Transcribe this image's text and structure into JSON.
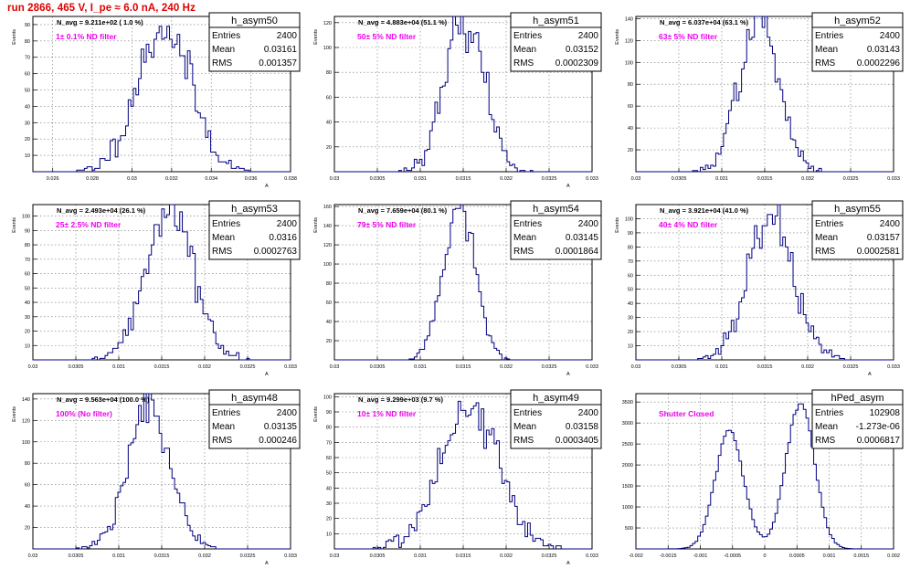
{
  "page_title": "run 2866,   465 V, I_pe ≈ 6.0 nA, 240 Hz",
  "chart_data": [
    {
      "type": "histogram",
      "name": "h_asym50",
      "stats": {
        "entries_label": "Entries",
        "entries": "2400",
        "mean_label": "Mean",
        "mean": "0.03161",
        "rms_label": "RMS",
        "rms": "0.001357"
      },
      "navg": "N_avg = 9.211e+02 ( 1.0 %)",
      "filter": "1± 0.1% ND filter",
      "ylabel": "Events",
      "xlabel": "A",
      "xlim": [
        0.025,
        0.038
      ],
      "ylim": [
        0,
        95
      ],
      "xticks": [
        "0.026",
        "0.028",
        "0.03",
        "0.032",
        "0.034",
        "0.036",
        "0.038"
      ],
      "xtick_values": [
        0.026,
        0.028,
        0.03,
        0.032,
        0.034,
        0.036,
        0.038
      ],
      "yticks": [
        10,
        20,
        30,
        40,
        50,
        60,
        70,
        80,
        90
      ],
      "mu": 0.03161,
      "sigma": 0.001357,
      "peak": 89,
      "nbins": 100,
      "seed": 11
    },
    {
      "type": "histogram",
      "name": "h_asym51",
      "stats": {
        "entries_label": "Entries",
        "entries": "2400",
        "mean_label": "Mean",
        "mean": "0.03152",
        "rms_label": "RMS",
        "rms": "0.0002309"
      },
      "navg": "N_avg = 4.883e+04 (51.1 %)",
      "filter": "50± 5% ND filter",
      "ylabel": "Events",
      "xlabel": "A",
      "xlim": [
        0.03,
        0.033
      ],
      "ylim": [
        0,
        125
      ],
      "xticks": [
        "0.03",
        "0.0305",
        "0.031",
        "0.0315",
        "0.032",
        "0.0325",
        "0.033"
      ],
      "xtick_values": [
        0.03,
        0.0305,
        0.031,
        0.0315,
        0.032,
        0.0325,
        0.033
      ],
      "yticks": [
        20,
        40,
        60,
        80,
        100,
        120
      ],
      "mu": 0.03152,
      "sigma": 0.0002309,
      "peak": 122,
      "nbins": 100,
      "seed": 23
    },
    {
      "type": "histogram",
      "name": "h_asym52",
      "stats": {
        "entries_label": "Entries",
        "entries": "2400",
        "mean_label": "Mean",
        "mean": "0.03143",
        "rms_label": "RMS",
        "rms": "0.0002296"
      },
      "navg": "N_avg = 6.037e+04 (63.1 %)",
      "filter": "63± 5% ND filter",
      "ylabel": "Events",
      "xlabel": "",
      "xlim": [
        0.03,
        0.033
      ],
      "ylim": [
        0,
        142
      ],
      "xticks": [
        "0.03",
        "0.0305",
        "0.031",
        "0.0315",
        "0.032",
        "0.0325",
        "0.033"
      ],
      "xtick_values": [
        0.03,
        0.0305,
        0.031,
        0.0315,
        0.032,
        0.0325,
        0.033
      ],
      "yticks": [
        20,
        40,
        60,
        80,
        100,
        120,
        140
      ],
      "mu": 0.03143,
      "sigma": 0.0002296,
      "peak": 140,
      "nbins": 100,
      "seed": 37
    },
    {
      "type": "histogram",
      "name": "h_asym53",
      "stats": {
        "entries_label": "Entries",
        "entries": "2400",
        "mean_label": "Mean",
        "mean": "0.0316",
        "rms_label": "RMS",
        "rms": "0.0002763"
      },
      "navg": "N_avg = 2.493e+04 (26.1 %)",
      "filter": "25± 2.5% ND filter",
      "ylabel": "Events",
      "xlabel": "A",
      "xlim": [
        0.03,
        0.033
      ],
      "ylim": [
        0,
        108
      ],
      "xticks": [
        "0.03",
        "0.0305",
        "0.031",
        "0.0315",
        "0.032",
        "0.0325",
        "0.033"
      ],
      "xtick_values": [
        0.03,
        0.0305,
        0.031,
        0.0315,
        0.032,
        0.0325,
        0.033
      ],
      "yticks": [
        10,
        20,
        30,
        40,
        50,
        60,
        70,
        80,
        90,
        100
      ],
      "mu": 0.0316,
      "sigma": 0.0002763,
      "peak": 106,
      "nbins": 100,
      "seed": 41
    },
    {
      "type": "histogram",
      "name": "h_asym54",
      "stats": {
        "entries_label": "Entries",
        "entries": "2400",
        "mean_label": "Mean",
        "mean": "0.03145",
        "rms_label": "RMS",
        "rms": "0.0001864"
      },
      "navg": "N_avg = 7.659e+04 (80.1 %)",
      "filter": "79± 5% ND filter",
      "ylabel": "Events",
      "xlabel": "A",
      "xlim": [
        0.03,
        0.033
      ],
      "ylim": [
        0,
        162
      ],
      "xticks": [
        "0.03",
        "0.0305",
        "0.031",
        "0.0315",
        "0.032",
        "0.0325",
        "0.033"
      ],
      "xtick_values": [
        0.03,
        0.0305,
        0.031,
        0.0315,
        0.032,
        0.0325,
        0.033
      ],
      "yticks": [
        20,
        40,
        60,
        80,
        100,
        120,
        140,
        160
      ],
      "mu": 0.03145,
      "sigma": 0.0001864,
      "peak": 158,
      "nbins": 100,
      "seed": 53
    },
    {
      "type": "histogram",
      "name": "h_asym55",
      "stats": {
        "entries_label": "Entries",
        "entries": "2400",
        "mean_label": "Mean",
        "mean": "0.03157",
        "rms_label": "RMS",
        "rms": "0.0002581"
      },
      "navg": "N_avg = 3.921e+04 (41.0 %)",
      "filter": "40± 4% ND filter",
      "ylabel": "Events",
      "xlabel": "A",
      "xlim": [
        0.03,
        0.033
      ],
      "ylim": [
        0,
        110
      ],
      "xticks": [
        "0.03",
        "0.0305",
        "0.031",
        "0.0315",
        "0.032",
        "0.0325",
        "0.033"
      ],
      "xtick_values": [
        0.03,
        0.0305,
        0.031,
        0.0315,
        0.032,
        0.0325,
        0.033
      ],
      "yticks": [
        10,
        20,
        30,
        40,
        50,
        60,
        70,
        80,
        90,
        100
      ],
      "mu": 0.03157,
      "sigma": 0.0002581,
      "peak": 104,
      "nbins": 100,
      "seed": 67
    },
    {
      "type": "histogram",
      "name": "h_asym48",
      "stats": {
        "entries_label": "Entries",
        "entries": "2400",
        "mean_label": "Mean",
        "mean": "0.03135",
        "rms_label": "RMS",
        "rms": "0.000246"
      },
      "navg": "N_avg = 9.563e+04 (100.0 %)",
      "filter": "100% (No filter)",
      "ylabel": "Events",
      "xlabel": "A",
      "xlim": [
        0.03,
        0.033
      ],
      "ylim": [
        0,
        145
      ],
      "xticks": [
        "0.03",
        "0.0305",
        "0.031",
        "0.0315",
        "0.032",
        "0.0325",
        "0.033"
      ],
      "xtick_values": [
        0.03,
        0.0305,
        0.031,
        0.0315,
        0.032,
        0.0325,
        0.033
      ],
      "yticks": [
        20,
        40,
        60,
        80,
        100,
        120,
        140
      ],
      "mu": 0.03135,
      "sigma": 0.000246,
      "peak": 133,
      "nbins": 100,
      "seed": 71
    },
    {
      "type": "histogram",
      "name": "h_asym49",
      "stats": {
        "entries_label": "Entries",
        "entries": "2400",
        "mean_label": "Mean",
        "mean": "0.03158",
        "rms_label": "RMS",
        "rms": "0.0003405"
      },
      "navg": "N_avg = 9.299e+03 (9.7 %)",
      "filter": "10± 1% ND filter",
      "ylabel": "Events",
      "xlabel": "A",
      "xlim": [
        0.03,
        0.033
      ],
      "ylim": [
        0,
        102
      ],
      "xticks": [
        "0.03",
        "0.0305",
        "0.031",
        "0.0315",
        "0.032",
        "0.0325",
        "0.033"
      ],
      "xtick_values": [
        0.03,
        0.0305,
        0.031,
        0.0315,
        0.032,
        0.0325,
        0.033
      ],
      "yticks": [
        10,
        20,
        30,
        40,
        50,
        60,
        70,
        80,
        90,
        100
      ],
      "mu": 0.03158,
      "sigma": 0.0003405,
      "peak": 95,
      "nbins": 100,
      "seed": 83
    },
    {
      "type": "histogram",
      "name": "hPed_asym",
      "stats": {
        "entries_label": "Entries",
        "entries": "102908",
        "mean_label": "Mean",
        "mean": "-1.273e-06",
        "rms_label": "RMS",
        "rms": "0.0006817"
      },
      "navg": "",
      "filter": "Shutter Closed",
      "ylabel": "",
      "xlabel": "",
      "xlim": [
        -0.002,
        0.002
      ],
      "ylim": [
        0,
        3700
      ],
      "xticks": [
        "-0.002",
        "-0.0015",
        "-0.001",
        "-0.0005",
        "0",
        "0.0005",
        "0.001",
        "0.0015",
        "0.002"
      ],
      "xtick_values": [
        -0.002,
        -0.0015,
        -0.001,
        -0.0005,
        0,
        0.0005,
        0.001,
        0.0015,
        0.002
      ],
      "yticks": [
        500,
        1000,
        1500,
        2000,
        2500,
        3000,
        3500
      ],
      "bimodal": true,
      "peaks": [
        [
          -0.00055,
          0.00022,
          2800
        ],
        [
          0.00055,
          0.00022,
          3500
        ]
      ],
      "nbins": 100,
      "seed": 97
    }
  ]
}
